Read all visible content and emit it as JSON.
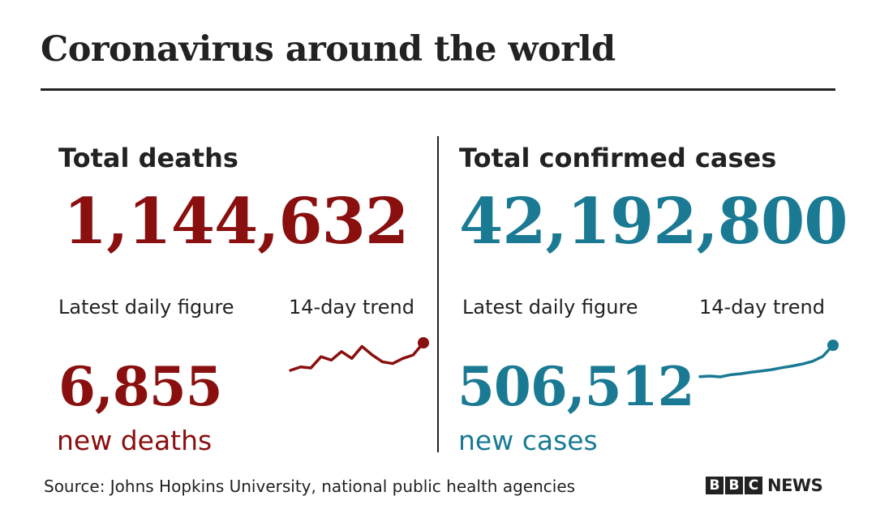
{
  "title": "Coronavirus around the world",
  "colors": {
    "deaths": "#8a0f0f",
    "cases": "#1a7a94",
    "text": "#222222"
  },
  "deaths": {
    "label": "Total deaths",
    "total": "1,144,632",
    "daily_label": "Latest daily figure",
    "trend_label": "14-day trend",
    "daily_value": "6,855",
    "daily_unit": "new deaths",
    "trend": [
      6050,
      6150,
      6120,
      6450,
      6350,
      6600,
      6400,
      6750,
      6500,
      6300,
      6250,
      6400,
      6500,
      6855
    ]
  },
  "cases": {
    "label": "Total confirmed cases",
    "total": "42,192,800",
    "daily_label": "Latest daily figure",
    "trend_label": "14-day trend",
    "daily_value": "506,512",
    "daily_unit": "new cases",
    "trend": [
      318000,
      322000,
      317000,
      330000,
      336000,
      345000,
      352000,
      360000,
      372000,
      382000,
      394000,
      410000,
      440000,
      506512
    ]
  },
  "source": "Source: Johns Hopkins University, national public health agencies",
  "logo": {
    "letters": [
      "B",
      "B",
      "C"
    ],
    "word": "NEWS"
  }
}
